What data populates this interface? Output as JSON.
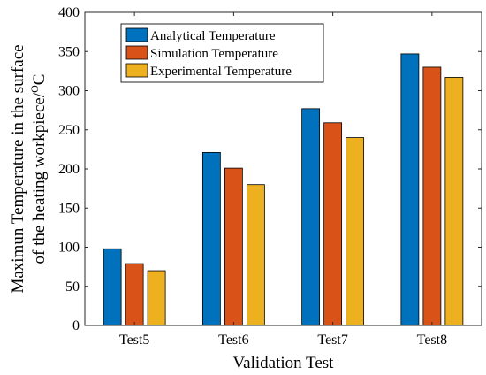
{
  "chart_data": {
    "type": "bar",
    "categories": [
      "Test5",
      "Test6",
      "Test7",
      "Test8"
    ],
    "series": [
      {
        "name": "Analytical Temperature",
        "color": "#0072BD",
        "values": [
          98,
          221,
          277,
          347
        ]
      },
      {
        "name": "Simulation Temperature",
        "color": "#D95319",
        "values": [
          79,
          201,
          259,
          330
        ]
      },
      {
        "name": "Experimental Temperature",
        "color": "#EDB120",
        "values": [
          70,
          180,
          240,
          317
        ]
      }
    ],
    "xlabel": "Validation Test",
    "ylabel_line1": "Maximun Temperature in the surface",
    "ylabel_line2": "of the heating workpiece/",
    "ylabel_unit": "C",
    "ylabel_degree": "O",
    "ylim": [
      0,
      400
    ],
    "yticks": [
      0,
      50,
      100,
      150,
      200,
      250,
      300,
      350,
      400
    ],
    "grid": false,
    "legend_position": "top-left"
  }
}
